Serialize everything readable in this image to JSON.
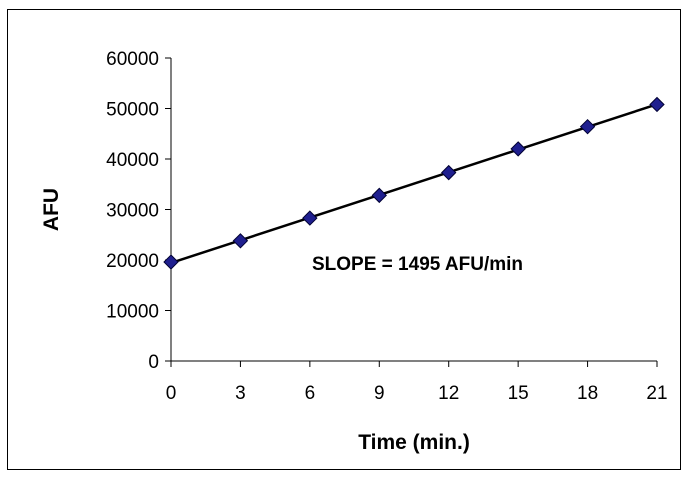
{
  "chart_data": {
    "type": "scatter",
    "title": "",
    "xlabel": "Time (min.)",
    "ylabel": "AFU",
    "xlim": [
      0,
      21
    ],
    "ylim": [
      0,
      60000
    ],
    "x_ticks": [
      0,
      3,
      6,
      9,
      12,
      15,
      18,
      21
    ],
    "y_ticks": [
      0,
      10000,
      20000,
      30000,
      40000,
      50000,
      60000
    ],
    "grid": false,
    "legend": "none",
    "series": [
      {
        "x": [
          0,
          3,
          6,
          9,
          12,
          15,
          18,
          21
        ],
        "y": [
          19600,
          23800,
          28300,
          32800,
          37300,
          42000,
          46400,
          50800
        ],
        "marker": "diamond",
        "color": "#1F1F8F",
        "trendline": "linear"
      }
    ],
    "annotations": [
      {
        "text": "SLOPE = 1495 AFU/min"
      }
    ]
  }
}
